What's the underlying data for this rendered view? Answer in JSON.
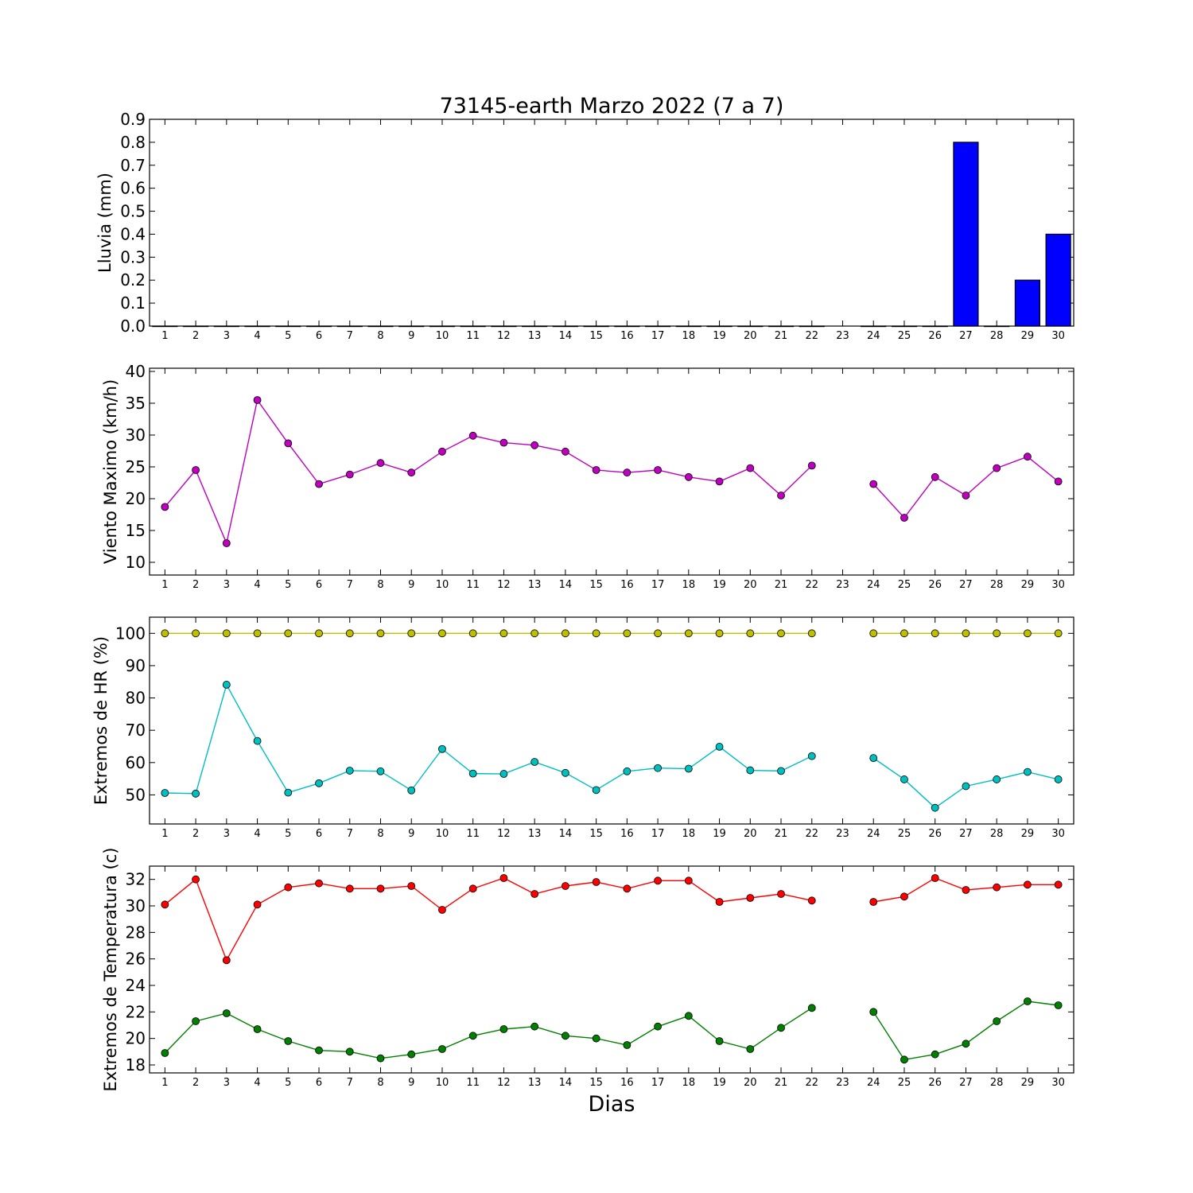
{
  "title": "73145-earth Marzo 2022  (7 a 7)",
  "xlabel": "Dias",
  "colors": {
    "rain_bar": "#0000ff",
    "wind": "#bf00bf",
    "hr_max": "#bfbf00",
    "hr_min": "#00bfbf",
    "temp_max": "#ff0000",
    "temp_min": "#007f00"
  },
  "chart_data": [
    {
      "type": "bar",
      "ylabel": "Lluvia (mm)",
      "xlim": [
        0.5,
        30.5
      ],
      "ylim": [
        0,
        0.9
      ],
      "yticks": [
        0.0,
        0.1,
        0.2,
        0.3,
        0.4,
        0.5,
        0.6,
        0.7,
        0.8,
        0.9
      ],
      "ytick_labels": [
        "0.0",
        "0.1",
        "0.2",
        "0.3",
        "0.4",
        "0.5",
        "0.6",
        "0.7",
        "0.8",
        "0.9"
      ],
      "x": [
        1,
        2,
        3,
        4,
        5,
        6,
        7,
        8,
        9,
        10,
        11,
        12,
        13,
        14,
        15,
        16,
        17,
        18,
        19,
        20,
        21,
        22,
        23,
        24,
        25,
        26,
        27,
        28,
        29,
        30
      ],
      "values": [
        0,
        0,
        0,
        0,
        0,
        0,
        0,
        0,
        0,
        0,
        0,
        0,
        0,
        0,
        0,
        0,
        0,
        0,
        0,
        0,
        0,
        0,
        null,
        0,
        0,
        0,
        0.8,
        0,
        0.2,
        0.4
      ]
    },
    {
      "type": "line",
      "ylabel": "Viento Maximo (km/h)",
      "xlim": [
        0.5,
        30.5
      ],
      "ylim": [
        8,
        40.5
      ],
      "yticks": [
        10,
        15,
        20,
        25,
        30,
        35,
        40
      ],
      "ytick_labels": [
        "10",
        "15",
        "20",
        "25",
        "30",
        "35",
        "40"
      ],
      "x": [
        1,
        2,
        3,
        4,
        5,
        6,
        7,
        8,
        9,
        10,
        11,
        12,
        13,
        14,
        15,
        16,
        17,
        18,
        19,
        20,
        21,
        22,
        23,
        24,
        25,
        26,
        27,
        28,
        29,
        30
      ],
      "series": [
        {
          "color_key": "wind",
          "values": [
            18.7,
            24.5,
            13.0,
            35.5,
            28.7,
            22.3,
            23.8,
            25.6,
            24.1,
            27.4,
            29.9,
            28.8,
            28.4,
            27.4,
            24.5,
            24.1,
            24.5,
            23.4,
            22.7,
            24.8,
            20.5,
            25.2,
            null,
            22.3,
            17.0,
            23.4,
            20.5,
            24.8,
            26.6,
            22.7
          ]
        }
      ]
    },
    {
      "type": "line",
      "ylabel": "Extremos de HR (%)",
      "xlim": [
        0.5,
        30.5
      ],
      "ylim": [
        41,
        105
      ],
      "yticks": [
        50,
        60,
        70,
        80,
        90,
        100
      ],
      "ytick_labels": [
        "50",
        "60",
        "70",
        "80",
        "90",
        "100"
      ],
      "x": [
        1,
        2,
        3,
        4,
        5,
        6,
        7,
        8,
        9,
        10,
        11,
        12,
        13,
        14,
        15,
        16,
        17,
        18,
        19,
        20,
        21,
        22,
        23,
        24,
        25,
        26,
        27,
        28,
        29,
        30
      ],
      "series": [
        {
          "color_key": "hr_max",
          "values": [
            100,
            100,
            100,
            100,
            100,
            100,
            100,
            100,
            100,
            100,
            100,
            100,
            100,
            100,
            100,
            100,
            100,
            100,
            100,
            100,
            100,
            100,
            null,
            100,
            100,
            100,
            100,
            100,
            100,
            100
          ]
        },
        {
          "color_key": "hr_min",
          "values": [
            50.6,
            50.4,
            84.1,
            66.7,
            50.7,
            53.6,
            57.5,
            57.3,
            51.4,
            64.2,
            56.6,
            56.5,
            60.2,
            56.8,
            51.5,
            57.3,
            58.3,
            58.1,
            64.9,
            57.6,
            57.4,
            62.0,
            null,
            61.4,
            54.8,
            46.0,
            52.7,
            54.8,
            57.1,
            54.8
          ]
        }
      ]
    },
    {
      "type": "line",
      "ylabel": "Extremos de Temperatura (c)",
      "xlim": [
        0.5,
        30.5
      ],
      "ylim": [
        17.4,
        33.0
      ],
      "yticks": [
        18,
        20,
        22,
        24,
        26,
        28,
        30,
        32
      ],
      "ytick_labels": [
        "18",
        "20",
        "22",
        "24",
        "26",
        "28",
        "30",
        "32"
      ],
      "x": [
        1,
        2,
        3,
        4,
        5,
        6,
        7,
        8,
        9,
        10,
        11,
        12,
        13,
        14,
        15,
        16,
        17,
        18,
        19,
        20,
        21,
        22,
        23,
        24,
        25,
        26,
        27,
        28,
        29,
        30
      ],
      "series": [
        {
          "color_key": "temp_max",
          "values": [
            30.1,
            32.0,
            25.9,
            30.1,
            31.4,
            31.7,
            31.3,
            31.3,
            31.5,
            29.7,
            31.3,
            32.1,
            30.9,
            31.5,
            31.8,
            31.3,
            31.9,
            31.9,
            30.3,
            30.6,
            30.9,
            30.4,
            null,
            30.3,
            30.7,
            32.1,
            31.2,
            31.4,
            31.6,
            31.6
          ]
        },
        {
          "color_key": "temp_min",
          "values": [
            18.9,
            21.3,
            21.9,
            20.7,
            19.8,
            19.1,
            19.0,
            18.5,
            18.8,
            19.2,
            20.2,
            20.7,
            20.9,
            20.2,
            20.0,
            19.5,
            20.9,
            21.7,
            19.8,
            19.2,
            20.8,
            22.3,
            null,
            22.0,
            18.4,
            18.8,
            19.6,
            21.3,
            22.8,
            22.5
          ]
        }
      ]
    }
  ]
}
